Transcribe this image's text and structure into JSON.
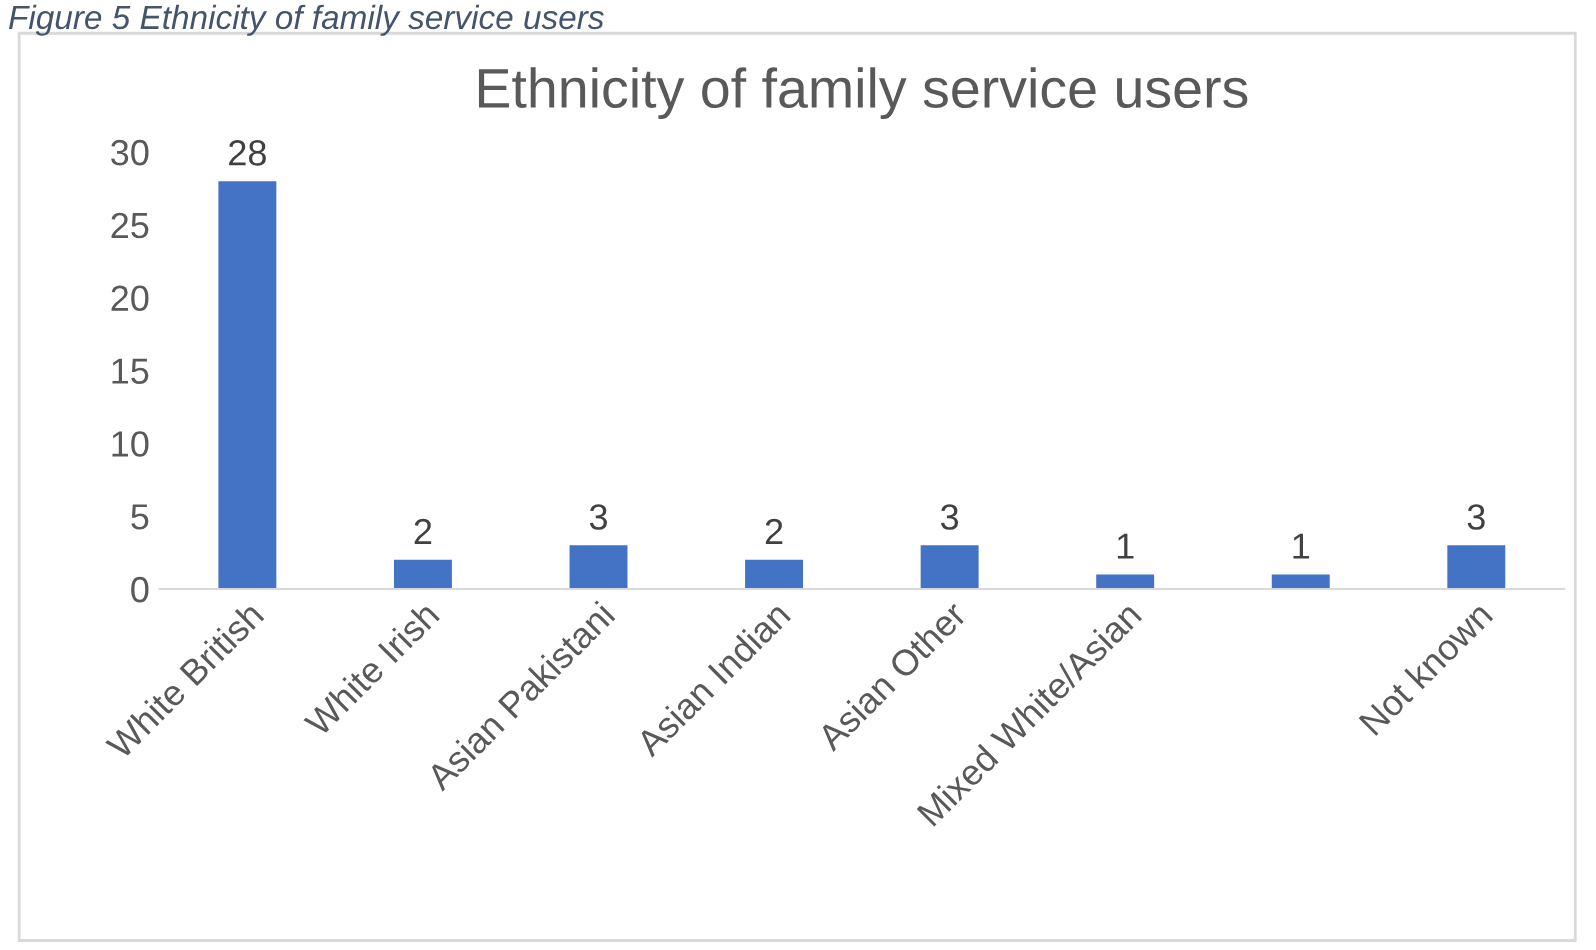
{
  "chart_data": {
    "type": "bar",
    "title": "Ethnicity of family service users",
    "annotations": [
      "Figure 5 Ethnicity of family service users"
    ],
    "categories": [
      "White British",
      "White Irish",
      "Asian Pakistani",
      "Asian Indian",
      "Asian Other",
      "Mixed White/Asian",
      null,
      "Not known"
    ],
    "values": [
      28,
      2,
      3,
      2,
      3,
      1,
      1,
      3
    ],
    "color": "#4472c4",
    "ylim": [
      0,
      30
    ],
    "yticks": [
      0,
      5,
      10,
      15,
      20,
      25,
      30
    ],
    "data_labels": true,
    "grid": false
  }
}
